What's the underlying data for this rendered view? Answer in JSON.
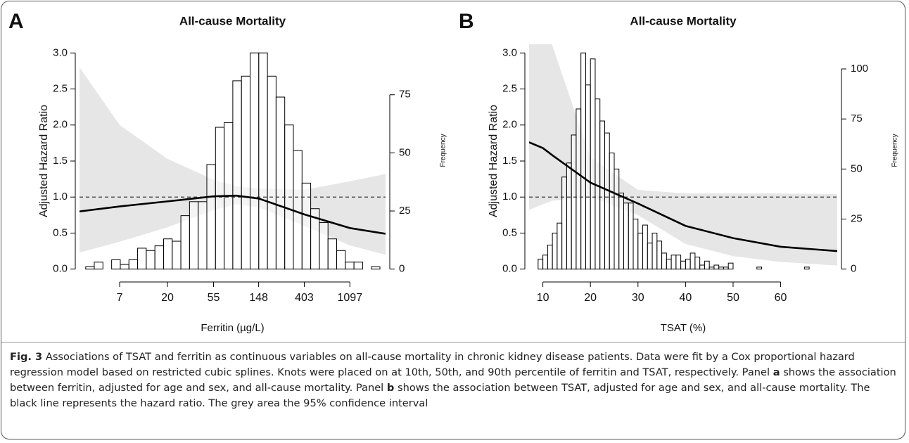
{
  "chart_data": [
    {
      "type": "combo",
      "panel_label": "A",
      "title": "All-cause Mortality",
      "x_label": "Ferritin (µg/L)",
      "y_label": "Adjusted Hazard Ratio",
      "y2_label": "Frequency",
      "xscale": "log",
      "xlim": [
        2.9,
        2400
      ],
      "xticks": [
        7,
        20,
        55,
        148,
        403,
        1097
      ],
      "ylim": [
        -0.12,
        3.12
      ],
      "yticks": [
        {
          "value": 0,
          "label": "0.0"
        },
        0.5,
        {
          "value": 1,
          "label": "1.0"
        },
        1.5,
        {
          "value": 2,
          "label": "2.0"
        },
        2.5,
        {
          "value": 3,
          "label": "3.0"
        }
      ],
      "y2lim": [
        -3.72,
        96.7
      ],
      "y2ticks": [
        0,
        25,
        50,
        75
      ],
      "reference_line": 1,
      "line_color": "#000000",
      "band_color": "#e6e6e6",
      "bar_fill": "#ffffff",
      "bar_stroke": "#000000",
      "histogram": {
        "axis": "y2",
        "bins": [
          3.32,
          4.01,
          4.85,
          5.87,
          7.1,
          8.58,
          10.38,
          12.55,
          15.18,
          18.36,
          22.2,
          26.84,
          32.46,
          39.25,
          47.47,
          57.4,
          69.41,
          83.93,
          101.49,
          122.73,
          148.41,
          179.47,
          217.02,
          262.43,
          317.35,
          383.75,
          464.05,
          561.16,
          678.58,
          820.57,
          992.27,
          1199.91,
          1451.0,
          1754.6,
          2121.7
        ],
        "counts": [
          1,
          3,
          0,
          4,
          2,
          4,
          9,
          8,
          10,
          13,
          12,
          23,
          29,
          29,
          45,
          61,
          63,
          81,
          83,
          93,
          93,
          83,
          74,
          62,
          51,
          37,
          26,
          20,
          13,
          8,
          3,
          3,
          0,
          1
        ]
      },
      "x": [
        2.9,
        7,
        20,
        55,
        90,
        148,
        403,
        1097,
        2400
      ],
      "hazard_ratio": [
        0.8,
        0.87,
        0.94,
        1.01,
        1.02,
        0.98,
        0.76,
        0.57,
        0.49
      ],
      "ci_lower": [
        0.23,
        0.38,
        0.58,
        0.82,
        0.9,
        0.86,
        0.6,
        0.33,
        0.2
      ],
      "ci_upper": [
        2.8,
        2.0,
        1.53,
        1.24,
        1.15,
        1.12,
        1.1,
        1.22,
        1.32
      ]
    },
    {
      "type": "combo",
      "panel_label": "B",
      "title": "All-cause Mortality",
      "x_label": "TSAT (%)",
      "y_label": "Adjusted Hazard Ratio",
      "y2_label": "Frequency",
      "xscale": "linear",
      "xlim": [
        7.1,
        71.9
      ],
      "xticks": [
        10,
        20,
        30,
        40,
        50,
        60
      ],
      "ylim": [
        -0.12,
        3.12
      ],
      "yticks": [
        {
          "value": 0,
          "label": "0.0"
        },
        0.5,
        {
          "value": 1,
          "label": "1.0"
        },
        1.5,
        {
          "value": 2,
          "label": "2.0"
        },
        2.5,
        {
          "value": 3,
          "label": "3.0"
        }
      ],
      "y2lim": [
        -4.32,
        112.3
      ],
      "y2ticks": [
        0,
        25,
        50,
        75,
        100
      ],
      "reference_line": 1,
      "line_color": "#000000",
      "band_color": "#e6e6e6",
      "bar_fill": "#ffffff",
      "bar_stroke": "#000000",
      "histogram": {
        "axis": "y2",
        "bins": [
          9,
          10,
          11,
          12,
          13,
          14,
          15,
          16,
          17,
          18,
          19,
          20,
          21,
          22,
          23,
          24,
          25,
          26,
          27,
          28,
          29,
          30,
          31,
          32,
          33,
          34,
          35,
          36,
          37,
          38,
          39,
          40,
          41,
          42,
          43,
          44,
          45,
          46,
          47,
          48,
          49,
          50,
          51,
          52,
          53,
          54,
          55,
          56,
          57,
          58,
          59,
          60,
          61,
          62,
          63,
          64,
          65,
          66,
          67
        ],
        "counts": [
          5,
          7,
          12,
          18,
          23,
          46,
          53,
          67,
          80,
          108,
          92,
          105,
          85,
          74,
          68,
          58,
          50,
          38,
          33,
          33,
          25,
          18,
          22,
          13,
          18,
          14,
          8,
          5,
          7,
          7,
          4,
          5,
          8,
          6,
          2,
          4,
          1,
          2,
          1,
          1,
          3,
          0,
          0,
          0,
          0,
          0,
          1,
          0,
          0,
          0,
          0,
          0,
          0,
          0,
          0,
          0,
          1,
          0
        ]
      },
      "x": [
        7.1,
        10,
        12,
        20,
        30,
        40,
        50,
        60,
        71.9
      ],
      "hazard_ratio": [
        1.76,
        1.68,
        1.58,
        1.2,
        0.91,
        0.6,
        0.43,
        0.31,
        0.25
      ],
      "ci_lower": [
        0.82,
        0.9,
        0.95,
        1.0,
        0.75,
        0.35,
        0.18,
        0.1,
        0.05
      ],
      "ci_upper": [
        5.0,
        3.8,
        3.1,
        1.55,
        1.1,
        1.05,
        1.05,
        1.05,
        1.04
      ]
    }
  ],
  "caption": {
    "label": "Fig. 3",
    "segments": [
      "Associations of TSAT and ferritin as continuous variables on all-cause mortality in chronic kidney disease patients. Data were fit by a Cox proportional hazard regression model based on restricted cubic splines. Knots were placed on at 10th, 50th, and 90th percentile of ferritin and TSAT, respectively. Panel",
      "a",
      "shows the association between ferritin, adjusted for age and sex, and all-cause mortality. Panel",
      "b",
      "shows the association between TSAT, adjusted for age and sex, and all-cause mortality. The black line represents the hazard ratio. The grey area the 95% confidence interval"
    ]
  }
}
